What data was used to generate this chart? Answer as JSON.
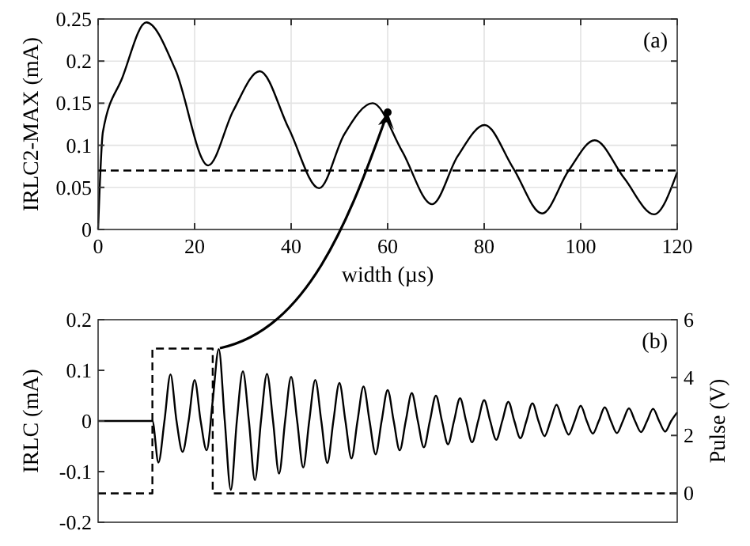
{
  "chart_data": [
    {
      "type": "line",
      "xlabel": "width (µs)",
      "ylabel": "IRLC2-MAX (mA)",
      "annotations": [
        "(a)"
      ],
      "x": [
        0,
        1,
        5,
        10,
        16,
        22.8,
        28,
        33.5,
        39.5,
        45.8,
        51,
        56.9,
        63,
        69.2,
        74.5,
        80.1,
        86,
        92,
        97.5,
        102.9,
        109,
        115.2,
        120
      ],
      "values": [
        0,
        0.116,
        0.18,
        0.246,
        0.19,
        0.076,
        0.141,
        0.188,
        0.12,
        0.049,
        0.113,
        0.15,
        0.093,
        0.03,
        0.087,
        0.124,
        0.073,
        0.019,
        0.07,
        0.106,
        0.061,
        0.018,
        0.068
      ],
      "color": "#000000",
      "xlim": [
        0,
        120
      ],
      "xticks": [
        0,
        20,
        40,
        60,
        80,
        100,
        120
      ],
      "ylim": [
        0,
        0.25
      ],
      "yticks": [
        0,
        0.05,
        0.1,
        0.15,
        0.2,
        0.25
      ],
      "grid": true,
      "ref_lines": [
        {
          "axis": "y",
          "value": 0.07,
          "color": "#000000",
          "line_style": "dashed"
        }
      ]
    },
    {
      "type": "line",
      "ylabel": "IRLC (mA)",
      "y2label": "Pulse (V)",
      "annotations": [
        "(b)"
      ],
      "categories": [
        null,
        null,
        null,
        null,
        null,
        null,
        null,
        null,
        null,
        null,
        null,
        null,
        null,
        null,
        null,
        null,
        null,
        null,
        null,
        null,
        null,
        null,
        null,
        null,
        null,
        null,
        null,
        null,
        null,
        null,
        null,
        null,
        null,
        null,
        null,
        null,
        null,
        null,
        null,
        null,
        null,
        null,
        null,
        null,
        null,
        null,
        null,
        null,
        null,
        null,
        null,
        null,
        null,
        null,
        null,
        null,
        null,
        null,
        null,
        null,
        null,
        null,
        null,
        null,
        null,
        null,
        null,
        null,
        null,
        null,
        null,
        null,
        null,
        null,
        null,
        null,
        null,
        null,
        null,
        null,
        null,
        null,
        null,
        null,
        null,
        null,
        null,
        null,
        null,
        null,
        null,
        null,
        null,
        null,
        null,
        null,
        null
      ],
      "series": [
        {
          "type": "line",
          "color": "#000000",
          "values": [
            0,
            0,
            0,
            0,
            0,
            0,
            0,
            0,
            0,
            0,
            -0.082,
            0,
            0.092,
            0,
            -0.061,
            0,
            0.081,
            0,
            -0.058,
            0.04,
            0.142,
            0,
            -0.136,
            0,
            0.098,
            0,
            -0.117,
            0,
            0.093,
            0,
            -0.104,
            0,
            0.087,
            0,
            -0.092,
            0,
            0.081,
            0,
            -0.083,
            0,
            0.075,
            0,
            -0.074,
            0,
            0.068,
            0,
            -0.066,
            0,
            0.061,
            0,
            -0.058,
            0,
            0.055,
            0,
            -0.052,
            0,
            0.05,
            0,
            -0.046,
            0,
            0.045,
            0,
            -0.042,
            0,
            0.041,
            0,
            -0.037,
            0,
            0.038,
            0,
            -0.034,
            0,
            0.035,
            0,
            -0.03,
            0,
            0.032,
            0,
            -0.027,
            0,
            0.03,
            0,
            -0.025,
            0,
            0.027,
            0,
            -0.024,
            0,
            0.025,
            0,
            -0.022,
            0,
            0.024,
            0,
            -0.021,
            0,
            0.017
          ]
        },
        {
          "type": "step",
          "axis": "y2",
          "color": "#000000",
          "line_style": "dashed",
          "values": [
            0,
            0,
            0,
            0,
            0,
            0,
            0,
            0,
            0,
            5,
            5,
            5,
            5,
            5,
            5,
            5,
            5,
            5,
            5,
            0,
            0,
            0,
            0,
            0,
            0,
            0,
            0,
            0,
            0,
            0,
            0,
            0,
            0,
            0,
            0,
            0,
            0,
            0,
            0,
            0,
            0,
            0,
            0,
            0,
            0,
            0,
            0,
            0,
            0,
            0,
            0,
            0,
            0,
            0,
            0,
            0,
            0,
            0,
            0,
            0,
            0,
            0,
            0,
            0,
            0,
            0,
            0,
            0,
            0,
            0,
            0,
            0,
            0,
            0,
            0,
            0,
            0,
            0,
            0,
            0,
            0,
            0,
            0,
            0,
            0,
            0,
            0,
            0,
            0,
            0,
            0,
            0,
            0,
            0,
            0,
            0,
            0
          ]
        }
      ],
      "ylim": [
        -0.2,
        0.2
      ],
      "yticks": [
        -0.2,
        -0.1,
        0,
        0.1,
        0.2
      ],
      "y2lim": [
        -1,
        6
      ],
      "y2ticks": [
        0,
        2,
        4,
        6
      ]
    }
  ]
}
